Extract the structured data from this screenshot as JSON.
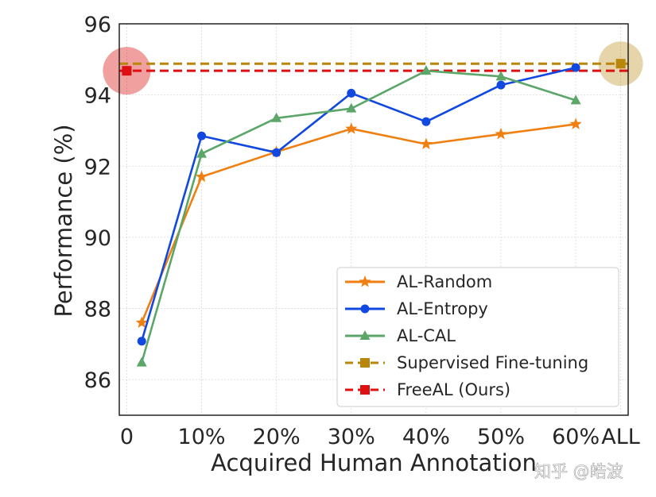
{
  "chart_data": {
    "type": "line",
    "title": "",
    "xlabel": "Acquired Human Annotation",
    "ylabel": "Performance (%)",
    "x_ticks": [
      "0",
      "10%",
      "20%",
      "30%",
      "40%",
      "50%",
      "60%",
      "ALL"
    ],
    "y_ticks": [
      "86",
      "88",
      "90",
      "92",
      "94",
      "96"
    ],
    "ylim": [
      85,
      96
    ],
    "grid": true,
    "legend_position": "lower-right",
    "series": [
      {
        "name": "AL-Random",
        "color": "#f07f12",
        "marker": "star",
        "style": "solid",
        "x": [
          2,
          10,
          20,
          30,
          40,
          50,
          60
        ],
        "y": [
          87.6,
          91.7,
          92.4,
          93.05,
          92.62,
          92.9,
          93.18
        ]
      },
      {
        "name": "AL-Entropy",
        "color": "#1048e0",
        "marker": "circle",
        "style": "solid",
        "x": [
          2,
          10,
          20,
          30,
          40,
          50,
          60
        ],
        "y": [
          87.08,
          92.85,
          92.38,
          94.05,
          93.25,
          94.28,
          94.77
        ]
      },
      {
        "name": "AL-CAL",
        "color": "#5ba668",
        "marker": "triangle",
        "style": "solid",
        "x": [
          2,
          10,
          20,
          30,
          40,
          50,
          60
        ],
        "y": [
          86.48,
          92.35,
          93.35,
          93.62,
          94.68,
          94.52,
          93.85
        ]
      },
      {
        "name": "Supervised Fine-tuning",
        "color": "#b8860b",
        "marker": "square",
        "style": "dashed",
        "x": [
          -1,
          67
        ],
        "y": [
          94.88,
          94.88
        ],
        "marker_at": {
          "x": 66,
          "y": 94.88
        }
      },
      {
        "name": "FreeAL (Ours)",
        "color": "#dd1111",
        "marker": "square",
        "style": "dashed",
        "x": [
          -1,
          67
        ],
        "y": [
          94.68,
          94.68
        ],
        "marker_at": {
          "x": 0,
          "y": 94.68
        }
      }
    ]
  },
  "watermark": "知乎 @皓波"
}
